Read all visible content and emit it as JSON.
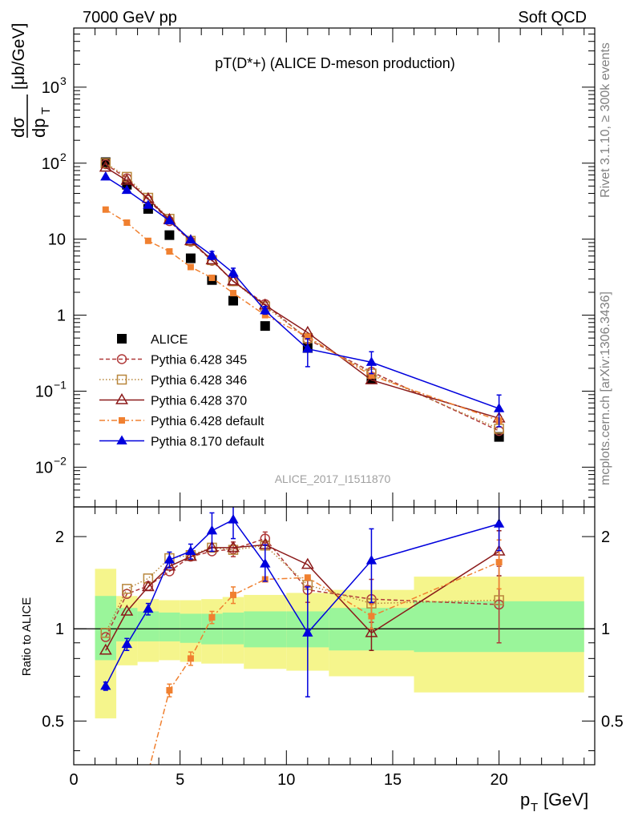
{
  "header": {
    "left": "7000 GeV pp",
    "right": "Soft QCD"
  },
  "side_text": {
    "top": "Rivet 3.1.10, ≥ 300k events",
    "bottom": "mcplots.cern.ch [arXiv:1306.3436]"
  },
  "plot_title": "pT(D*+) (ALICE D-meson production)",
  "analysis_label": "ALICE_2017_I1511870",
  "chart_data": [
    {
      "type": "scatter",
      "panel": "main",
      "ylabel": "dσ/dp_T [μb/GeV]",
      "yscale": "log",
      "ylim": [
        0.003,
        6000
      ],
      "xlim": [
        0,
        24.5
      ],
      "legend_placement": "bottom-left",
      "series": [
        {
          "name": "ALICE",
          "color": "#000000",
          "marker": "filled-square",
          "line": "none",
          "x": [
            1.5,
            2.5,
            3.5,
            4.5,
            5.5,
            6.5,
            7.5,
            9,
            11,
            14,
            20
          ],
          "y": [
            103,
            52,
            25,
            11.3,
            5.6,
            2.9,
            1.55,
            0.72,
            0.37,
            0.145,
            0.025
          ]
        },
        {
          "name": "Pythia 6.428 345",
          "color": "#b03a3a",
          "marker": "open-circle",
          "line": "dashed",
          "x": [
            1.5,
            2.5,
            3.5,
            4.5,
            5.5,
            6.5,
            7.5,
            9,
            11,
            14,
            20
          ],
          "y": [
            97,
            63,
            33,
            17.3,
            9.3,
            5.2,
            2.8,
            1.4,
            0.48,
            0.18,
            0.03
          ]
        },
        {
          "name": "Pythia 6.428 346",
          "color": "#b8863b",
          "marker": "open-square",
          "line": "dotted",
          "x": [
            1.5,
            2.5,
            3.5,
            4.5,
            5.5,
            6.5,
            7.5,
            9,
            11,
            14,
            20
          ],
          "y": [
            100,
            66,
            35,
            18.5,
            9.5,
            5.3,
            2.8,
            1.3,
            0.5,
            0.17,
            0.032
          ]
        },
        {
          "name": "Pythia 6.428 370",
          "color": "#8b1a1a",
          "marker": "open-triangle",
          "line": "solid",
          "x": [
            1.5,
            2.5,
            3.5,
            4.5,
            5.5,
            6.5,
            7.5,
            9,
            11,
            14,
            20
          ],
          "y": [
            88,
            59,
            34,
            18,
            9.5,
            5.3,
            2.8,
            1.35,
            0.59,
            0.14,
            0.044
          ]
        },
        {
          "name": "Pythia 6.428 default",
          "color": "#f08030",
          "marker": "filled-small-square",
          "line": "dashdot",
          "x": [
            1.5,
            2.5,
            3.5,
            4.5,
            5.5,
            6.5,
            7.5,
            9,
            11,
            14,
            20
          ],
          "y": [
            24.5,
            16.5,
            9.5,
            6.9,
            4.3,
            3.1,
            1.95,
            1.0,
            0.52,
            0.16,
            0.041
          ]
        },
        {
          "name": "Pythia 8.170 default",
          "color": "#0000dd",
          "marker": "filled-triangle",
          "line": "solid",
          "x": [
            1.5,
            2.5,
            3.5,
            4.5,
            5.5,
            6.5,
            7.5,
            9,
            11,
            14,
            20
          ],
          "y": [
            66,
            44,
            28,
            17.5,
            9.8,
            6.1,
            3.6,
            1.15,
            0.36,
            0.24,
            0.059
          ],
          "err_up": [
            0,
            0,
            0,
            0,
            0,
            0.8,
            0.55,
            0.15,
            0.13,
            0.09,
            0.03
          ],
          "err_dn": [
            0,
            0,
            0,
            0,
            0,
            0.7,
            0.45,
            0.12,
            0.15,
            0.07,
            0.025
          ]
        }
      ]
    },
    {
      "type": "scatter",
      "panel": "ratio",
      "ylabel": "Ratio to ALICE",
      "yscale": "log",
      "ylim": [
        0.36,
        2.5
      ],
      "xlim": [
        0,
        24.5
      ],
      "xlabel": "p_T [GeV]",
      "x_ticks": [
        0,
        5,
        10,
        15,
        20
      ],
      "y_ticks": [
        0.5,
        1,
        2
      ],
      "bands": {
        "bins": [
          [
            1,
            2
          ],
          [
            2,
            3
          ],
          [
            3,
            4
          ],
          [
            4,
            5
          ],
          [
            5,
            6
          ],
          [
            6,
            7
          ],
          [
            7,
            8
          ],
          [
            8,
            10
          ],
          [
            10,
            12
          ],
          [
            12,
            16
          ],
          [
            16,
            24
          ]
        ],
        "inner": [
          [
            0.79,
            1.28
          ],
          [
            0.91,
            1.17
          ],
          [
            0.91,
            1.14
          ],
          [
            0.91,
            1.13
          ],
          [
            0.9,
            1.12
          ],
          [
            0.89,
            1.12
          ],
          [
            0.89,
            1.13
          ],
          [
            0.87,
            1.14
          ],
          [
            0.87,
            1.14
          ],
          [
            0.85,
            1.17
          ],
          [
            0.84,
            1.23
          ]
        ],
        "outer": [
          [
            0.51,
            1.57
          ],
          [
            0.76,
            1.28
          ],
          [
            0.78,
            1.25
          ],
          [
            0.79,
            1.24
          ],
          [
            0.78,
            1.24
          ],
          [
            0.77,
            1.25
          ],
          [
            0.77,
            1.27
          ],
          [
            0.74,
            1.29
          ],
          [
            0.73,
            1.31
          ],
          [
            0.7,
            1.34
          ],
          [
            0.62,
            1.48
          ]
        ],
        "inner_color": "#9af59a",
        "outer_color": "#f5f58c"
      },
      "series": [
        {
          "name": "Pythia 6.428 345",
          "color": "#b03a3a",
          "x": [
            1.5,
            2.5,
            3.5,
            4.5,
            5.5,
            6.5,
            7.5,
            9,
            11,
            14,
            20
          ],
          "y": [
            0.94,
            1.3,
            1.38,
            1.54,
            1.72,
            1.79,
            1.82,
            1.97,
            1.34,
            1.25,
            1.2
          ],
          "err_up": [
            0,
            0,
            0,
            0,
            0,
            0,
            0.1,
            0.1,
            0.12,
            0.2,
            0.4
          ],
          "err_dn": [
            0,
            0,
            0,
            0,
            0,
            0,
            0.1,
            0.1,
            0.12,
            0.2,
            0.3
          ]
        },
        {
          "name": "Pythia 6.428 346",
          "color": "#b8863b",
          "x": [
            1.5,
            2.5,
            3.5,
            4.5,
            5.5,
            6.5,
            7.5,
            9,
            11,
            14,
            20
          ],
          "y": [
            0.97,
            1.35,
            1.46,
            1.7,
            1.74,
            1.84,
            1.81,
            1.87,
            1.39,
            1.21,
            1.24
          ]
        },
        {
          "name": "Pythia 6.428 370",
          "color": "#8b1a1a",
          "x": [
            1.5,
            2.5,
            3.5,
            4.5,
            5.5,
            6.5,
            7.5,
            9,
            11,
            14,
            20
          ],
          "y": [
            0.85,
            1.14,
            1.37,
            1.6,
            1.72,
            1.84,
            1.84,
            1.88,
            1.62,
            0.97,
            1.79
          ],
          "err_up": [
            0,
            0,
            0,
            0,
            0,
            0,
            0,
            0,
            0,
            0.12,
            0.3
          ],
          "err_dn": [
            0,
            0,
            0,
            0,
            0,
            0,
            0,
            0,
            0,
            0.12,
            0.3
          ]
        },
        {
          "name": "Pythia 6.428 default",
          "color": "#f08030",
          "x": [
            3.5,
            4.5,
            5.5,
            6.5,
            7.5,
            9,
            11,
            14,
            20
          ],
          "y": [
            0.34,
            0.63,
            0.8,
            1.09,
            1.29,
            1.45,
            1.47,
            1.1,
            1.65
          ],
          "err_up": [
            0,
            0.03,
            0.04,
            0.05,
            0.08,
            0,
            0,
            0.1,
            0.3
          ],
          "err_dn": [
            0,
            0.03,
            0.04,
            0.05,
            0.08,
            0,
            0,
            0.1,
            0.3
          ]
        },
        {
          "name": "Pythia 8.170 default",
          "color": "#0000dd",
          "x": [
            1.5,
            2.5,
            3.5,
            4.5,
            5.5,
            6.5,
            7.5,
            9,
            11,
            14,
            20
          ],
          "y": [
            0.65,
            0.89,
            1.16,
            1.68,
            1.79,
            2.09,
            2.27,
            1.63,
            0.97,
            1.67,
            2.2
          ],
          "err_up": [
            0.02,
            0.04,
            0.05,
            0.1,
            0.1,
            0.3,
            0.3,
            0.25,
            0.4,
            0.45,
            0.4
          ],
          "err_dn": [
            0.02,
            0.04,
            0.05,
            0.1,
            0.1,
            0.3,
            0.3,
            0.2,
            0.37,
            0.45,
            0.4
          ]
        }
      ]
    }
  ]
}
